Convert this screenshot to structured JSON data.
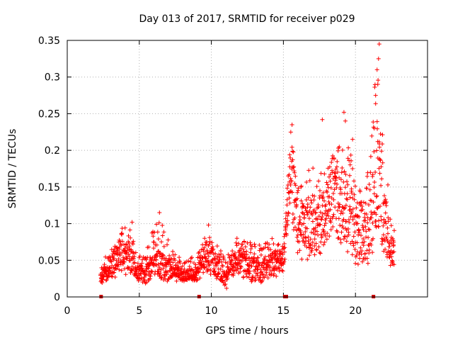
{
  "chart_data": {
    "type": "scatter",
    "title": "Day 013 of 2017, SRMTID for receiver p029",
    "xlabel": "GPS time / hours",
    "ylabel": "SRMTID / TECUs",
    "xlim": [
      0,
      25
    ],
    "ylim": [
      0,
      0.35
    ],
    "grid": true,
    "legend": "none",
    "marker": "plus",
    "marker_color": "#ff0000",
    "gap_marker_color": "#cc0000",
    "x_ticks": [
      0,
      5,
      10,
      15,
      20
    ],
    "x_tick_labels": [
      "0",
      "5",
      "10",
      "15",
      "20"
    ],
    "y_ticks": [
      0,
      0.05,
      0.1,
      0.15,
      0.2,
      0.25,
      0.3,
      0.35
    ],
    "y_tick_labels": [
      "0",
      "0.05",
      "0.1",
      "0.15",
      "0.2",
      "0.25",
      "0.3",
      "0.35"
    ],
    "gap_markers": [
      {
        "x": 2.35,
        "y": 0
      },
      {
        "x": 9.15,
        "y": 0
      },
      {
        "x": 15.1,
        "y": 0
      },
      {
        "x": 15.2,
        "y": 0
      },
      {
        "x": 21.25,
        "y": 0
      }
    ],
    "series": [
      {
        "name": "SRMTID",
        "density_per_hour": 80,
        "profile": [
          {
            "x": 2.3,
            "low": 0.015,
            "center": 0.03,
            "high": 0.05
          },
          {
            "x": 3.0,
            "low": 0.02,
            "center": 0.04,
            "high": 0.06
          },
          {
            "x": 3.5,
            "low": 0.03,
            "center": 0.06,
            "high": 0.09
          },
          {
            "x": 4.3,
            "low": 0.03,
            "center": 0.055,
            "high": 0.1
          },
          {
            "x": 4.8,
            "low": 0.02,
            "center": 0.035,
            "high": 0.06
          },
          {
            "x": 5.4,
            "low": 0.015,
            "center": 0.03,
            "high": 0.055
          },
          {
            "x": 5.8,
            "low": 0.02,
            "center": 0.04,
            "high": 0.09
          },
          {
            "x": 6.5,
            "low": 0.02,
            "center": 0.045,
            "high": 0.11
          },
          {
            "x": 7.3,
            "low": 0.02,
            "center": 0.035,
            "high": 0.065
          },
          {
            "x": 8.0,
            "low": 0.02,
            "center": 0.03,
            "high": 0.05
          },
          {
            "x": 9.0,
            "low": 0.02,
            "center": 0.03,
            "high": 0.06
          },
          {
            "x": 9.8,
            "low": 0.03,
            "center": 0.06,
            "high": 0.09
          },
          {
            "x": 10.5,
            "low": 0.02,
            "center": 0.04,
            "high": 0.07
          },
          {
            "x": 11.0,
            "low": 0.01,
            "center": 0.025,
            "high": 0.05
          },
          {
            "x": 11.7,
            "low": 0.03,
            "center": 0.05,
            "high": 0.085
          },
          {
            "x": 12.5,
            "low": 0.02,
            "center": 0.045,
            "high": 0.08
          },
          {
            "x": 13.4,
            "low": 0.015,
            "center": 0.035,
            "high": 0.07
          },
          {
            "x": 14.2,
            "low": 0.025,
            "center": 0.045,
            "high": 0.08
          },
          {
            "x": 15.0,
            "low": 0.03,
            "center": 0.05,
            "high": 0.07
          },
          {
            "x": 15.5,
            "low": 0.12,
            "center": 0.18,
            "high": 0.235
          },
          {
            "x": 16.0,
            "low": 0.05,
            "center": 0.09,
            "high": 0.15
          },
          {
            "x": 17.0,
            "low": 0.05,
            "center": 0.1,
            "high": 0.18
          },
          {
            "x": 17.8,
            "low": 0.06,
            "center": 0.11,
            "high": 0.17
          },
          {
            "x": 18.6,
            "low": 0.08,
            "center": 0.14,
            "high": 0.2
          },
          {
            "x": 19.4,
            "low": 0.06,
            "center": 0.12,
            "high": 0.23
          },
          {
            "x": 20.2,
            "low": 0.04,
            "center": 0.09,
            "high": 0.15
          },
          {
            "x": 21.0,
            "low": 0.04,
            "center": 0.09,
            "high": 0.18
          },
          {
            "x": 21.5,
            "low": 0.08,
            "center": 0.17,
            "high": 0.345
          },
          {
            "x": 22.0,
            "low": 0.05,
            "center": 0.1,
            "high": 0.19
          },
          {
            "x": 22.7,
            "low": 0.035,
            "center": 0.06,
            "high": 0.09
          }
        ],
        "outliers": [
          {
            "x": 17.7,
            "y": 0.242
          },
          {
            "x": 19.2,
            "y": 0.252
          },
          {
            "x": 19.3,
            "y": 0.24
          },
          {
            "x": 19.8,
            "y": 0.215
          },
          {
            "x": 21.4,
            "y": 0.275
          },
          {
            "x": 21.5,
            "y": 0.31
          },
          {
            "x": 21.6,
            "y": 0.325
          },
          {
            "x": 21.65,
            "y": 0.345
          },
          {
            "x": 21.55,
            "y": 0.29
          },
          {
            "x": 21.3,
            "y": 0.23
          },
          {
            "x": 6.4,
            "y": 0.115
          },
          {
            "x": 4.5,
            "y": 0.102
          },
          {
            "x": 9.8,
            "y": 0.098
          },
          {
            "x": 15.6,
            "y": 0.235
          }
        ]
      }
    ]
  }
}
